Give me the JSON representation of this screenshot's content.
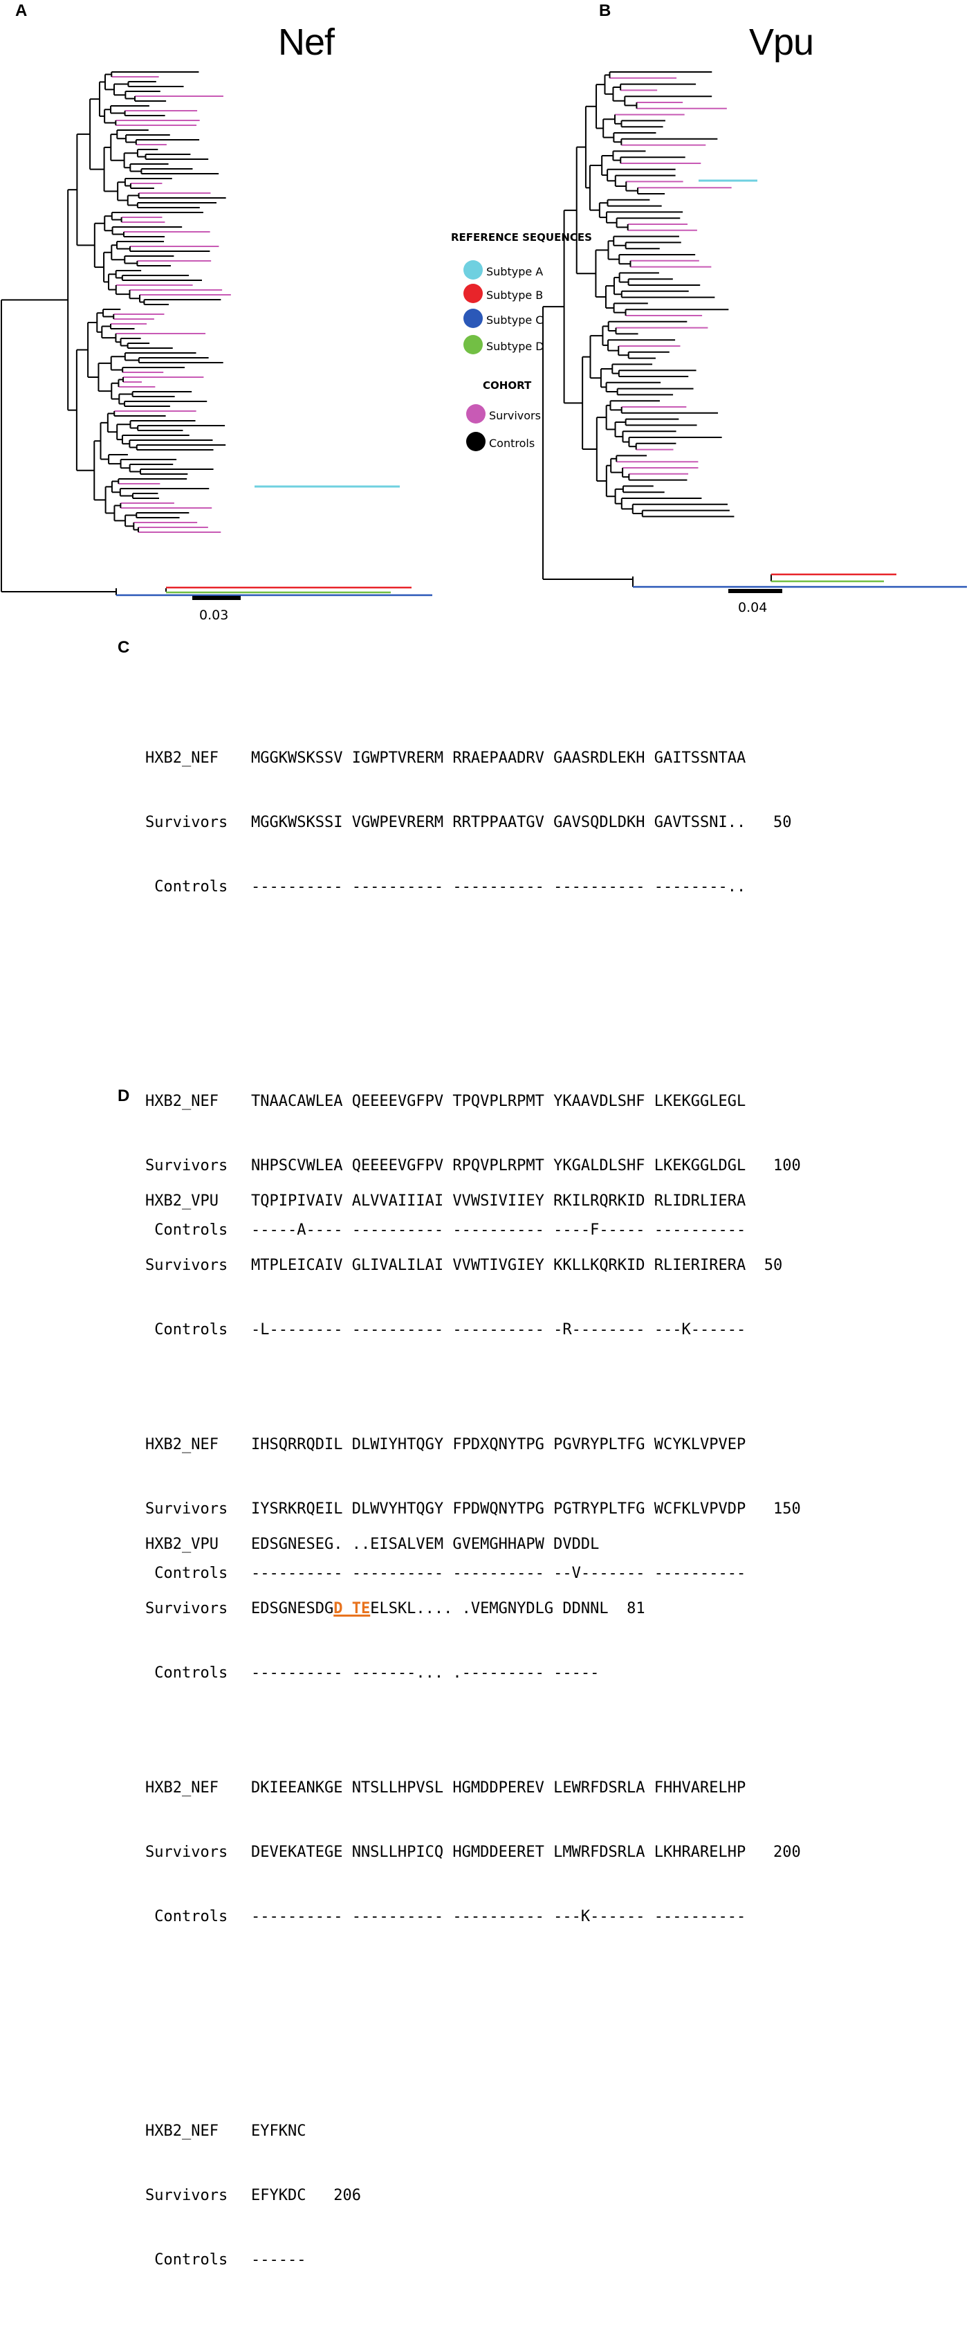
{
  "panels": {
    "a": {
      "letter": "A",
      "title": "Nef",
      "scale": "0.03"
    },
    "b": {
      "letter": "B",
      "title": "Vpu",
      "scale": "0.04"
    },
    "c": {
      "letter": "C"
    },
    "d": {
      "letter": "D"
    }
  },
  "legend": {
    "ref_heading": "REFERENCE SEQUENCES",
    "subtype_a": "Subtype A",
    "subtype_b": "Subtype B",
    "subtype_c": "Subtype C",
    "subtype_d": "Subtype D",
    "cohort_heading": "COHORT",
    "survivors": "Survivors",
    "controls": "Controls"
  },
  "colors": {
    "subtype_a": "#6fd0e0",
    "subtype_b": "#e8242a",
    "subtype_c": "#2b58b8",
    "subtype_d": "#72bf44",
    "survivors": "#c85ab5",
    "controls": "#000000",
    "highlight": "#e8731e"
  },
  "nef": {
    "blocks": [
      {
        "hxb2_label": "HXB2_NEF",
        "hxb2": "MGGKWSKSSV IGWPTVRERM RRAEPAADRV GAASRDLEKH GAITSSNTAA",
        "surv_label": "Survivors",
        "surv": "MGGKWSKSSI VGWPEVRERM RRTPPAATGV GAVSQDLDKH GAVTSSNI..",
        "num": "50",
        "ctrl_label": " Controls",
        "ctrl": "---------- ---------- ---------- ---------- --------.."
      },
      {
        "hxb2_label": "HXB2_NEF",
        "hxb2": "TNAACAWLEA QEEEEVGFPV TPQVPLRPMT YKAAVDLSHF LKEKGGLEGL",
        "surv_label": "Survivors",
        "surv": "NHPSCVWLEA QEEEEVGFPV RPQVPLRPMT YKGALDLSHF LKEKGGLDGL",
        "num": "100",
        "ctrl_label": " Controls",
        "ctrl": "-----A---- ---------- ---------- ----F----- ----------"
      },
      {
        "hxb2_label": "HXB2_NEF",
        "hxb2": "IHSQRRQDIL DLWIYHTQGY FPDXQNYTPG PGVRYPLTFG WCYKLVPVEP",
        "surv_label": "Survivors",
        "surv": "IYSRKRQEIL DLWVYHTQGY FPDWQNYTPG PGTRYPLTFG WCFKLVPVDP",
        "num": "150",
        "ctrl_label": " Controls",
        "ctrl": "---------- ---------- ---------- --V------- ----------"
      },
      {
        "hxb2_label": "HXB2_NEF",
        "hxb2": "DKIEEANKGE NTSLLHPVSL HGMDDPEREV LEWRFDSRLA FHHVARELHP",
        "surv_label": "Survivors",
        "surv": "DEVEKATEGE NNSLLHPICQ HGMDDEERET LMWRFDSRLA LKHRARELHP",
        "num": "200",
        "ctrl_label": " Controls",
        "ctrl": "---------- ---------- ---------- ---K------ ----------"
      },
      {
        "hxb2_label": "HXB2_NEF",
        "hxb2": "EYFKNC",
        "surv_label": "Survivors",
        "surv": "EFYKDC",
        "num": "206",
        "ctrl_label": " Controls",
        "ctrl": "------"
      }
    ]
  },
  "vpu": {
    "block1": {
      "hxb2_label": "HXB2_VPU",
      "hxb2": "TQPIPIVAIV ALVVAIIIAI VVWSIVIIEY RKILRQRKID RLIDRLIERA",
      "surv_label": "Survivors",
      "surv": "MTPLEICAIV GLIVALILAI VVWTIVGIEY KKLLKQRKID RLIERIRERA",
      "num": "50",
      "ctrl_label": " Controls",
      "ctrl": "-L-------- ---------- ---------- -R-------- ---K------"
    },
    "block2": {
      "hxb2_label": "HXB2_VPU",
      "hxb2": "EDSGNESEG. ..EISALVEM GVEMGHHAPW DVDDL",
      "surv_label": "Survivors",
      "surv_pre": "EDSGNESDG",
      "surv_hl": "D TE",
      "surv_post": "ELSKL.... .VEMGNYDLG DDNNL",
      "num": "81",
      "ctrl_label": " Controls",
      "ctrl": "---------- -------... .--------- -----"
    }
  }
}
